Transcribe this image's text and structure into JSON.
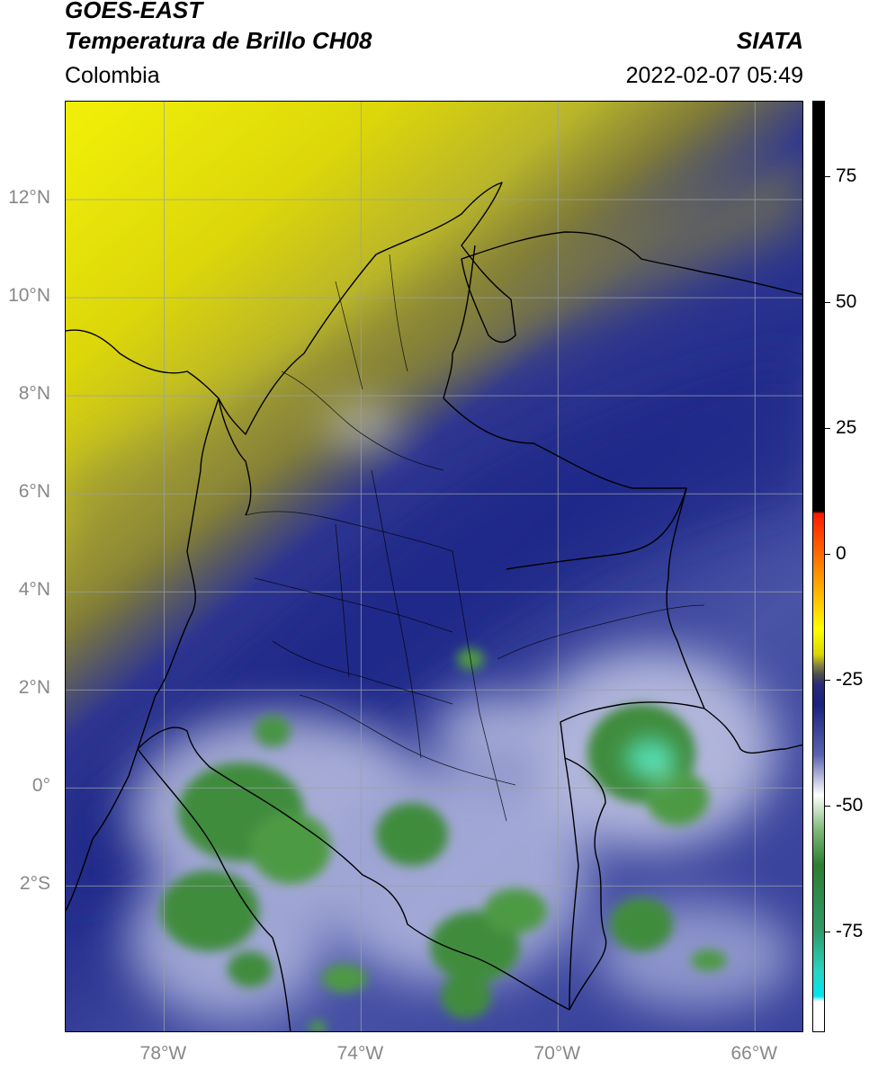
{
  "header": {
    "title_line1": "GOES-EAST",
    "title_line2": "Temperatura de Brillo CH08",
    "brand": "SIATA",
    "region": "Colombia",
    "datetime": "2022-02-07 05:49"
  },
  "map": {
    "lon_range": [
      -80,
      -65
    ],
    "lat_range": [
      -5,
      14
    ],
    "lat_labels": [
      {
        "value": 12,
        "text": "12°N"
      },
      {
        "value": 10,
        "text": "10°N"
      },
      {
        "value": 8,
        "text": "8°N"
      },
      {
        "value": 6,
        "text": "6°N"
      },
      {
        "value": 4,
        "text": "4°N"
      },
      {
        "value": 2,
        "text": "2°N"
      },
      {
        "value": 0,
        "text": "0°"
      },
      {
        "value": -2,
        "text": "2°S"
      }
    ],
    "lon_labels": [
      {
        "value": -78,
        "text": "78°W"
      },
      {
        "value": -74,
        "text": "74°W"
      },
      {
        "value": -70,
        "text": "70°W"
      },
      {
        "value": -66,
        "text": "66°W"
      }
    ],
    "colors": {
      "warm": "#e4e400",
      "olive": "#7d7a2a",
      "navy": "#1f2a8c",
      "mid_blue": "#5c66b0",
      "pale": "#ccd0ea",
      "green": "#3d8a3a",
      "teal": "#3fc9a0"
    }
  },
  "colorbar": {
    "range": [
      -95,
      90
    ],
    "ticks": [
      {
        "value": 75,
        "text": "75"
      },
      {
        "value": 50,
        "text": "50"
      },
      {
        "value": 25,
        "text": "25"
      },
      {
        "value": 0,
        "text": "0"
      },
      {
        "value": -25,
        "text": "-25"
      },
      {
        "value": -50,
        "text": "-50"
      },
      {
        "value": -75,
        "text": "-75"
      }
    ]
  }
}
